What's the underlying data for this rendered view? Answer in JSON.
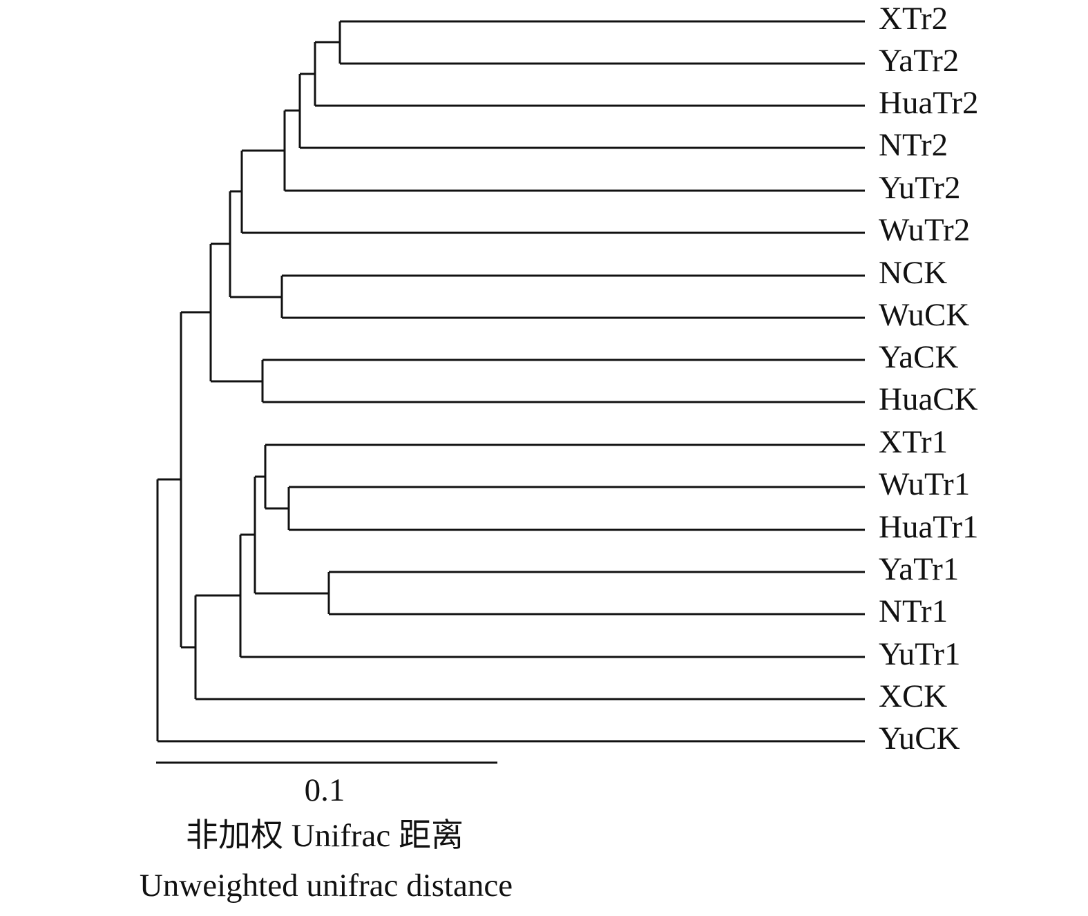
{
  "leaves": [
    "XTr2",
    "YaTr2",
    "HuaTr2",
    "NTr2",
    "YuTr2",
    "WuTr2",
    "NCK",
    "WuCK",
    "YaCK",
    "HuaCK",
    "XTr1",
    "WuTr1",
    "HuaTr1",
    "YaTr1",
    "NTr1",
    "YuTr1",
    "XCK",
    "YuCK"
  ],
  "scale_bar": {
    "label": "0.1"
  },
  "axis_title": {
    "chinese": "非加权 Unifrac 距离",
    "english": "Unweighted unifrac distance"
  }
}
